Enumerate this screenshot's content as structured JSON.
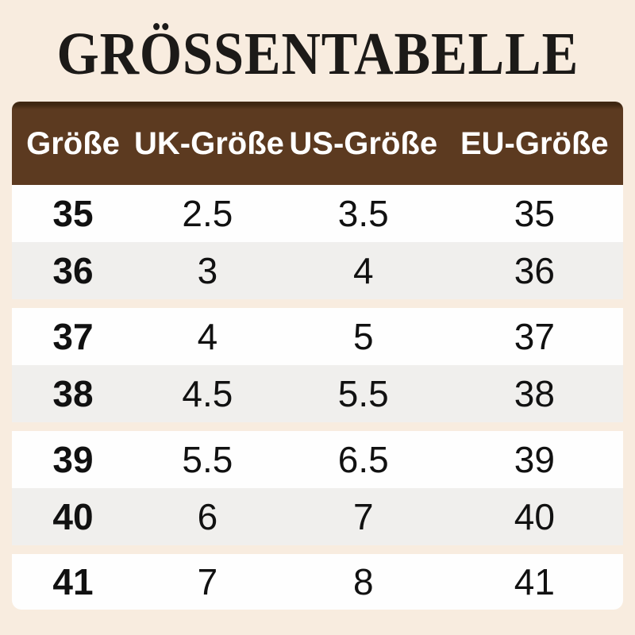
{
  "page": {
    "background_color": "#f8ecdf",
    "title": "GRÖSSENTABELLE",
    "title_color": "#1c1a18"
  },
  "table": {
    "header_background": "#5c3a20",
    "header_text_color": "#ffffff",
    "row_color_odd": "#fefefe",
    "row_color_even": "#f0efed",
    "columns": [
      "Größe",
      "UK-Größe",
      "US-Größe",
      "EU-Größe"
    ],
    "rows": [
      {
        "groesse": "35",
        "uk": "2.5",
        "us": "3.5",
        "eu": "35"
      },
      {
        "groesse": "36",
        "uk": "3",
        "us": "4",
        "eu": "36"
      },
      {
        "groesse": "37",
        "uk": "4",
        "us": "5",
        "eu": "37"
      },
      {
        "groesse": "38",
        "uk": "4.5",
        "us": "5.5",
        "eu": "38"
      },
      {
        "groesse": "39",
        "uk": "5.5",
        "us": "6.5",
        "eu": "39"
      },
      {
        "groesse": "40",
        "uk": "6",
        "us": "7",
        "eu": "40"
      },
      {
        "groesse": "41",
        "uk": "7",
        "us": "8",
        "eu": "41"
      }
    ]
  }
}
